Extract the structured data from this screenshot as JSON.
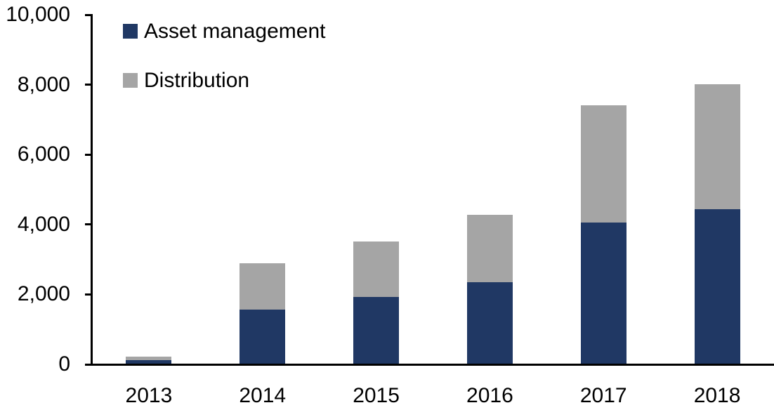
{
  "chart_data": {
    "type": "bar",
    "stacked": true,
    "title": "",
    "xlabel": "",
    "ylabel": "",
    "categories": [
      "2013",
      "2014",
      "2015",
      "2016",
      "2017",
      "2018"
    ],
    "series": [
      {
        "name": "Asset management",
        "color": "#203864",
        "values": [
          100,
          1540,
          1900,
          2320,
          4040,
          4420
        ]
      },
      {
        "name": "Distribution",
        "color": "#A5A5A5",
        "values": [
          110,
          1330,
          1600,
          1930,
          3350,
          3580
        ]
      }
    ],
    "totals": [
      210,
      2870,
      3500,
      4250,
      7390,
      8000
    ],
    "y_axis": {
      "min": 0,
      "max": 10000,
      "tick_interval": 2000,
      "tick_values": [
        0,
        2000,
        4000,
        6000,
        8000,
        10000
      ],
      "tick_labels": [
        "0",
        "2,000",
        "4,000",
        "6,000",
        "8,000",
        "10,000"
      ]
    },
    "legend_position": "top-left",
    "grid": false,
    "axis_color": "#000000",
    "background_color": "#FFFFFF"
  }
}
